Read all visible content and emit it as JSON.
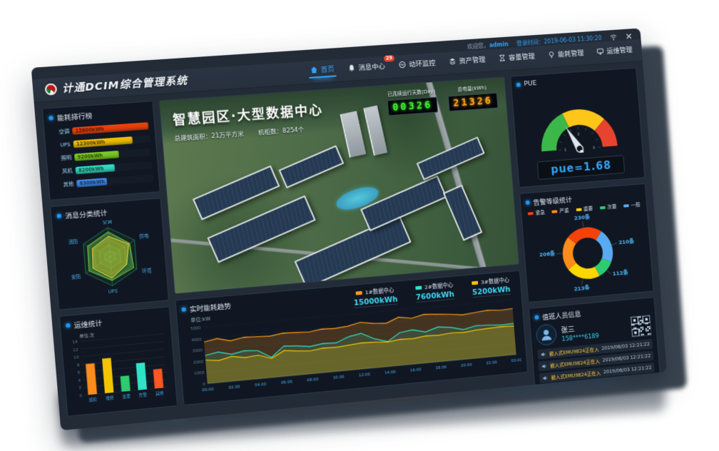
{
  "window": {
    "welcome_prefix": "欢迎您，",
    "welcome_user": "admin",
    "login_time_label": "登录时间：",
    "login_time": "2019-06-03 11:30:20"
  },
  "header": {
    "app_title": "计通DCIM综合管理系统"
  },
  "nav": {
    "items": [
      {
        "label": "首页",
        "icon": "home-icon",
        "active": true
      },
      {
        "label": "消息中心",
        "icon": "bell-icon",
        "badge": "29"
      },
      {
        "label": "动环监控",
        "icon": "monitor-icon"
      },
      {
        "label": "资产管理",
        "icon": "asset-icon"
      },
      {
        "label": "容量管理",
        "icon": "capacity-icon"
      },
      {
        "label": "能耗管理",
        "icon": "energy-icon"
      },
      {
        "label": "运维管理",
        "icon": "ops-icon"
      }
    ]
  },
  "center": {
    "title": "智慧园区·大型数据中心",
    "stats": [
      {
        "label": "总建筑面积：",
        "value": "21万平方米"
      },
      {
        "label": "机柜数：",
        "value": "8254个"
      }
    ],
    "counters": [
      {
        "label": "已连续运行天数(Day)",
        "value": "00326",
        "color": "#3cf52c"
      },
      {
        "label": "总电量(kWh)",
        "value": "21326",
        "color": "#ffa41b"
      }
    ]
  },
  "personnel": {
    "title": "值班人员信息",
    "name": "张三",
    "phone": "158****6189",
    "events": [
      {
        "text": "嵌入式EMU9824正在入库中",
        "time": "2019/06/03 12:21:22"
      },
      {
        "text": "嵌入式EMU9824正在入库中",
        "time": "2019/06/03 12:21:22"
      },
      {
        "text": "嵌入式EMU9824正在入库中",
        "time": "2019/06/03 12:21:22"
      },
      {
        "text": "嵌入式EMU9824正在入库中",
        "time": "2019/06/03 12:21:22"
      },
      {
        "text": "嵌入式EMU9824正在入库中",
        "time": "2019/06/03 12:21:22"
      }
    ]
  },
  "icons": [
    "home-icon",
    "bell-icon",
    "monitor-icon",
    "asset-icon",
    "capacity-icon",
    "energy-icon",
    "ops-icon",
    "wifi-icon",
    "close-icon",
    "speaker-icon",
    "user-avatar-icon",
    "qr-code"
  ],
  "colors": {
    "accent": "#35a1f0",
    "badge": "#e8432e",
    "panel_border": "#27384a"
  },
  "chart_data": [
    {
      "id": "energy_rank",
      "type": "bar",
      "orientation": "horizontal",
      "title": "能耗排行榜",
      "categories": [
        "空调",
        "UPS",
        "照明",
        "风机",
        "其他"
      ],
      "values": [
        15800,
        12300,
        9200,
        8200,
        6300
      ],
      "labels": [
        "15800kWh",
        "12300kWh",
        "9200kWh",
        "8200kWh",
        "6300kWh"
      ],
      "colors": [
        "#f4420c",
        "#f5c400",
        "#7ed321",
        "#2fe3c6",
        "#3e8ef7"
      ],
      "max": 16000
    },
    {
      "id": "msg_radar",
      "type": "radar",
      "title": "消息分类统计",
      "categories": [
        "空调",
        "供电",
        "环境",
        "UPS",
        "安防",
        "消防"
      ],
      "series": [
        {
          "name": "总量",
          "values": [
            85,
            80,
            88,
            82,
            86,
            84
          ]
        },
        {
          "name": "告警",
          "values": [
            70,
            76,
            62,
            74,
            70,
            66
          ]
        }
      ],
      "max": 100
    },
    {
      "id": "ops_bar",
      "type": "bar",
      "orientation": "vertical",
      "title": "运维统计",
      "unit": "单位:次",
      "categories": [
        "巡检",
        "维修",
        "变更",
        "告警",
        "其他"
      ],
      "values": [
        8,
        9,
        4,
        7,
        5
      ],
      "colors": [
        "#ff8c1a",
        "#f5c400",
        "#2ecc71",
        "#2fe3c6",
        "#ff5722"
      ],
      "ylim": [
        0,
        14
      ],
      "yticks": [
        0,
        2,
        4,
        6,
        8,
        10,
        12,
        14
      ]
    },
    {
      "id": "pue_gauge",
      "type": "gauge",
      "title": "PUE",
      "value": 1.68,
      "min": 1,
      "max": 3,
      "display": "pue=1.68",
      "segments": [
        {
          "to": 1.75,
          "color": "#3cb84a"
        },
        {
          "to": 2.5,
          "color": "#ffc61a"
        },
        {
          "to": 3,
          "color": "#e8432e"
        }
      ],
      "ticks": [
        1,
        2,
        3
      ]
    },
    {
      "id": "alarm_donut",
      "type": "pie",
      "title": "告警等级统计",
      "legend": [
        {
          "label": "紧急",
          "color": "#f4430a"
        },
        {
          "label": "严重",
          "color": "#ff8c1a"
        },
        {
          "label": "重要",
          "color": "#ffd700"
        },
        {
          "label": "次要",
          "color": "#2ecc71"
        },
        {
          "label": "一般",
          "color": "#5aaaf0"
        }
      ],
      "slices": [
        {
          "name": "紧急",
          "value": 230,
          "label": "230条",
          "color": "#f4430a"
        },
        {
          "name": "一般",
          "value": 210,
          "label": "210条",
          "color": "#5aaaf0"
        },
        {
          "name": "次要",
          "value": 112,
          "label": "112条",
          "color": "#2ecc71"
        },
        {
          "name": "重要",
          "value": 213,
          "label": "213条",
          "color": "#ffd700"
        },
        {
          "name": "严重",
          "value": 206,
          "label": "206条",
          "color": "#ff8c1a"
        }
      ]
    },
    {
      "id": "energy_trend",
      "type": "area",
      "title": "实时能耗趋势",
      "unit": "单位:kW",
      "x_ticks": [
        "00:00",
        "02:00",
        "04:00",
        "06:00",
        "08:00",
        "10:00",
        "12:00",
        "14:00",
        "16:00",
        "18:00",
        "20:00",
        "22:00",
        "00:00"
      ],
      "ylim": [
        0,
        5000
      ],
      "yticks": [
        0,
        1000,
        2000,
        3000,
        4000,
        5000
      ],
      "series": [
        {
          "name": "1#数据中心",
          "total": "15000kWh",
          "color": "#ff9d1c",
          "values": [
            3700,
            3900,
            3600,
            3800,
            3750,
            3700,
            3850,
            3800,
            3750,
            3900,
            3850,
            3950,
            4200,
            4000,
            3900,
            4350,
            4150,
            4400,
            4300,
            4200,
            4050,
            4150,
            4250,
            4150,
            4200
          ]
        },
        {
          "name": "2#数据中心",
          "total": "7600kWh",
          "color": "#2fe3c6",
          "values": [
            2500,
            2700,
            2400,
            2600,
            2500,
            1800,
            2700,
            2600,
            2450,
            2600,
            2550,
            3000,
            3200,
            2600,
            2250,
            2950,
            3100,
            2800,
            3150,
            3000,
            2700,
            2950,
            2900,
            2800,
            2850
          ]
        },
        {
          "name": "3#数据中心",
          "total": "5200kWh",
          "color": "#f5c400",
          "values": [
            2100,
            1950,
            2200,
            2000,
            2100,
            1700,
            2300,
            2150,
            2050,
            2200,
            2150,
            2250,
            2350,
            2300,
            2200,
            2350,
            2300,
            2450,
            2400,
            2500,
            2450,
            2550,
            2600,
            2650,
            2600
          ]
        }
      ]
    }
  ]
}
